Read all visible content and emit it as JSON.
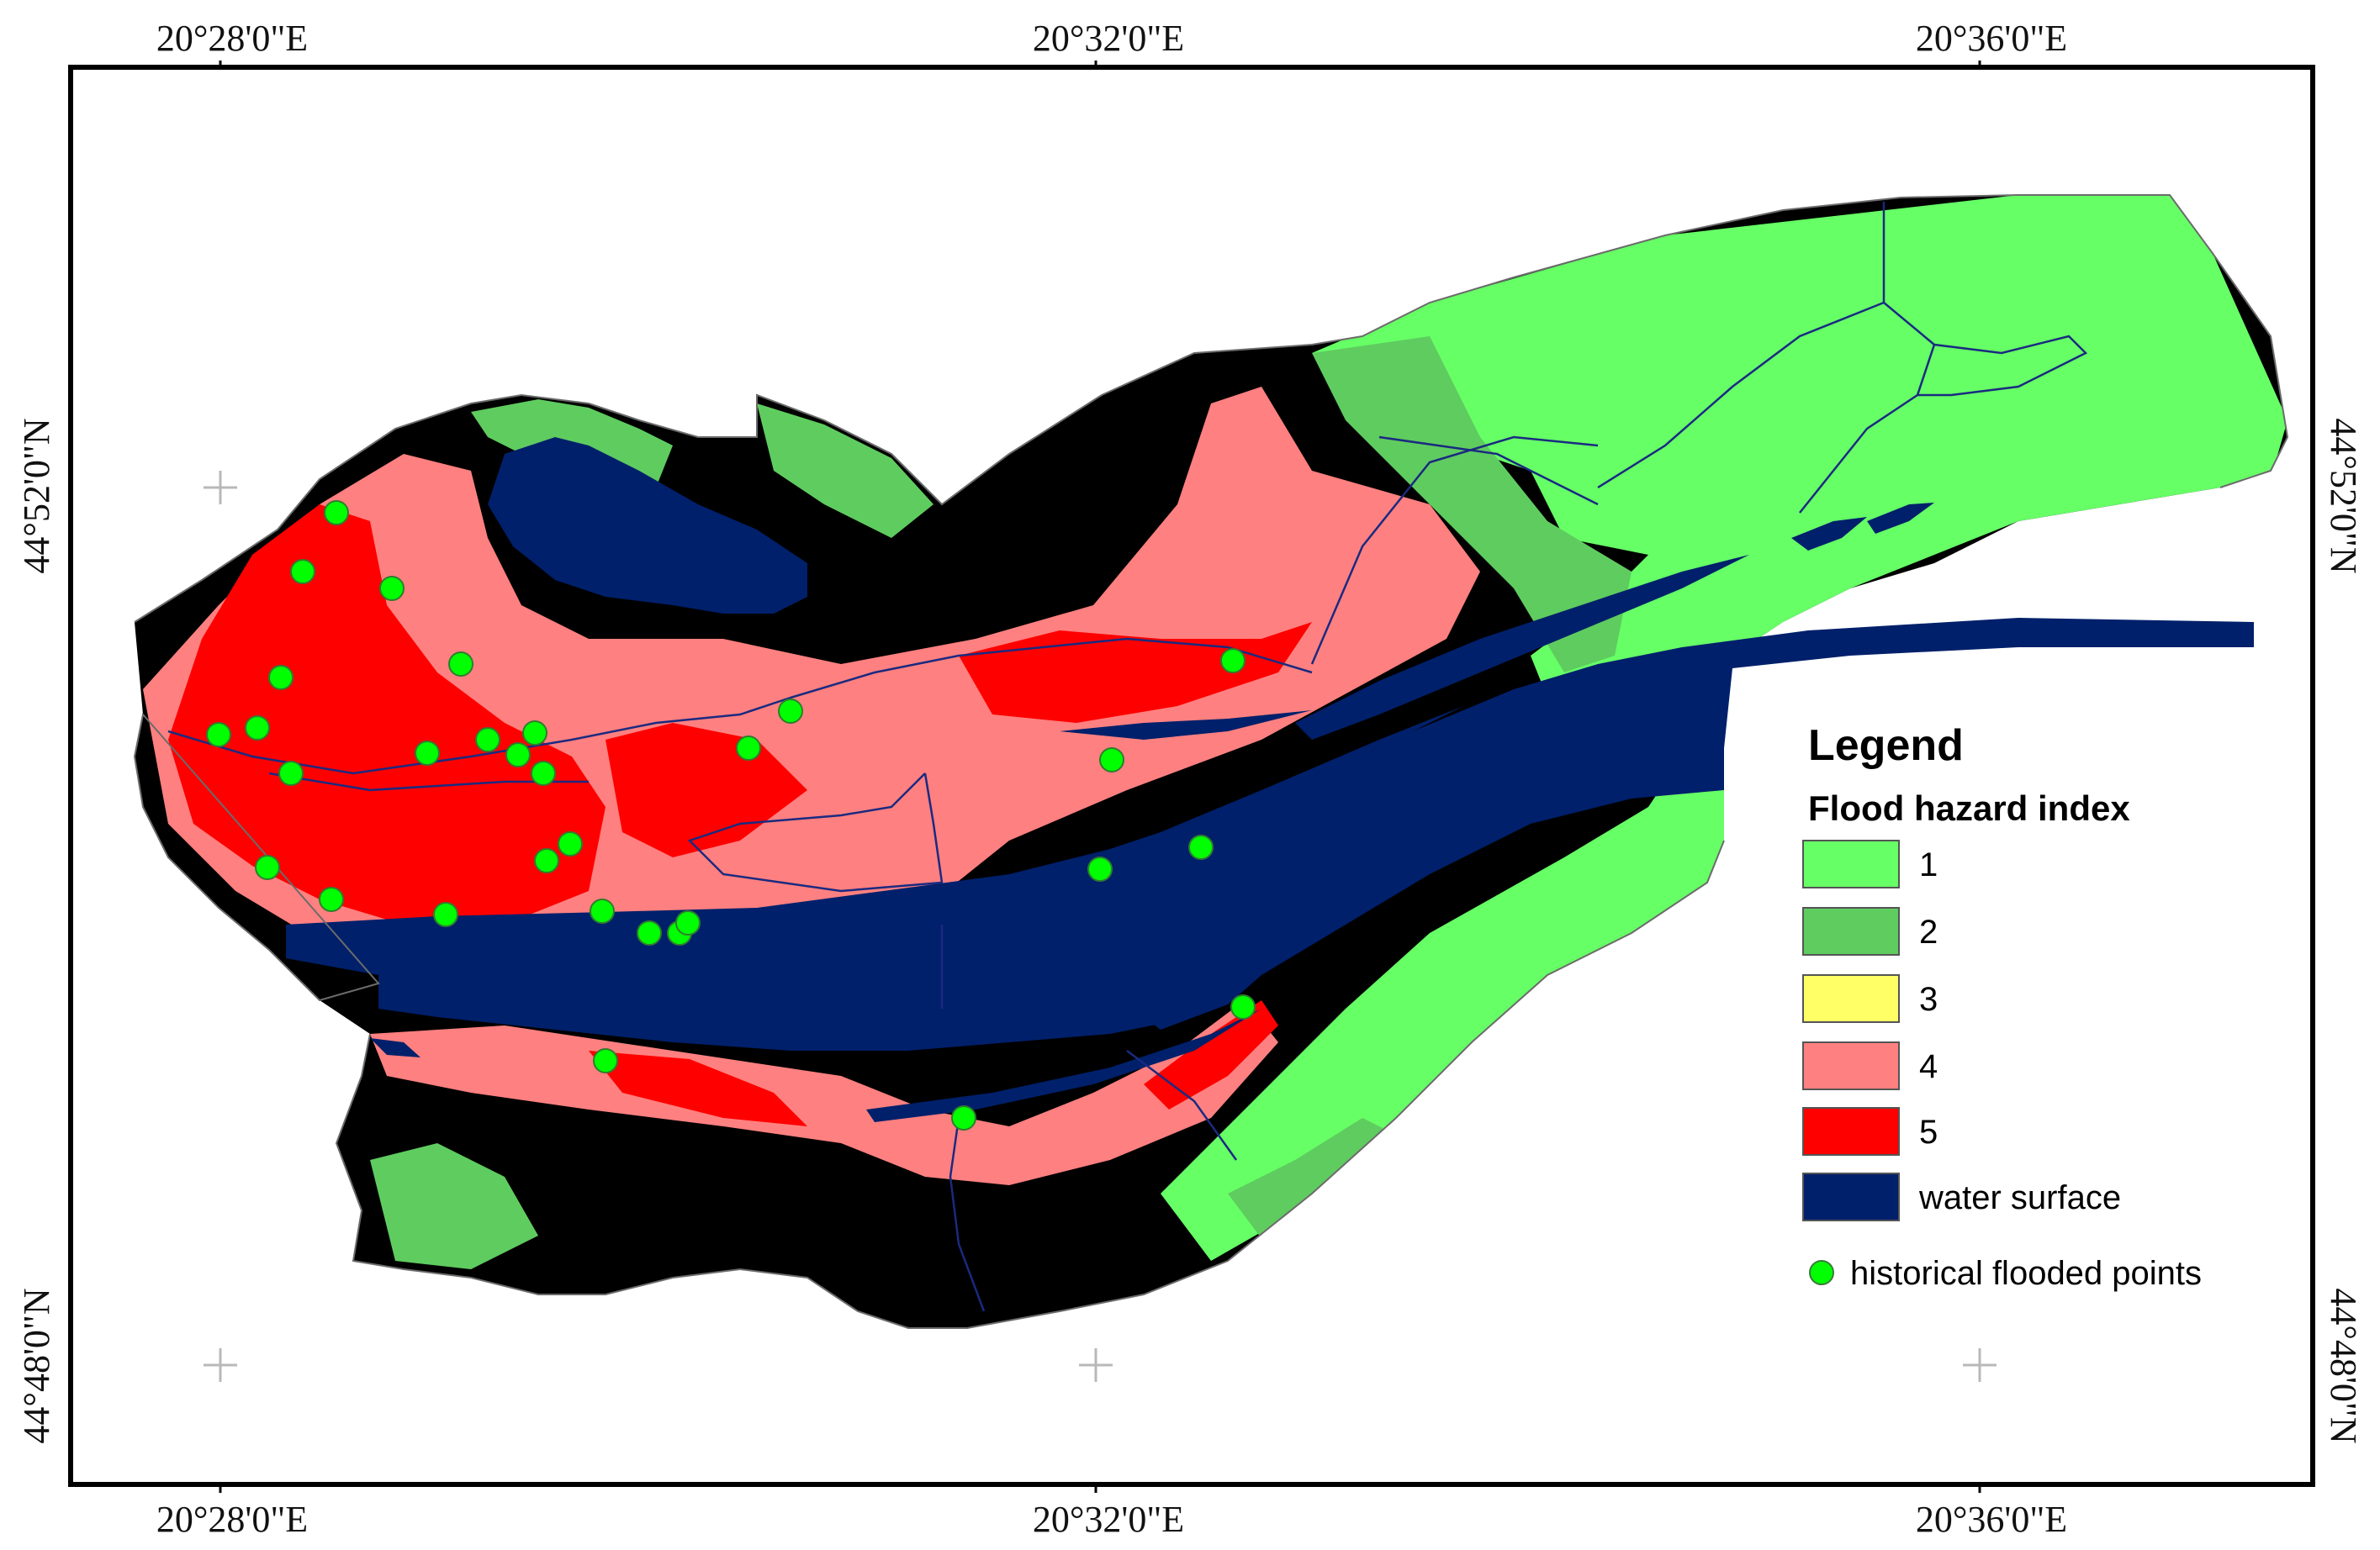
{
  "colors": {
    "class_1": "#66ff66",
    "class_2": "#5fcc5f",
    "class_3": "#ffff66",
    "class_4": "#ff8080",
    "class_5": "#ff0000",
    "water": "#00206b",
    "flood_point": "#00ff00",
    "frame": "#000000"
  },
  "graticule": {
    "top": [
      "20°28'0\"E",
      "20°32'0\"E",
      "20°36'0\"E"
    ],
    "bottom": [
      "20°28'0\"E",
      "20°32'0\"E",
      "20°36'0\"E"
    ],
    "left": [
      "44°52'0\"N",
      "44°48'0\"N"
    ],
    "right": [
      "44°52'0\"N",
      "44°48'0\"N"
    ]
  },
  "legend": {
    "title": "Legend",
    "subtitle": "Flood hazard index",
    "classes": [
      {
        "label": "1",
        "color": "#66ff66"
      },
      {
        "label": "2",
        "color": "#5fcc5f"
      },
      {
        "label": "3",
        "color": "#ffff66"
      },
      {
        "label": "4",
        "color": "#ff8080"
      },
      {
        "label": "5",
        "color": "#ff0000"
      },
      {
        "label": "water surface",
        "color": "#00206b"
      }
    ],
    "points_label": "historical flooded points"
  },
  "symbols": {
    "graticule_cross": "plus-icon",
    "flood_point": "circle-icon"
  }
}
